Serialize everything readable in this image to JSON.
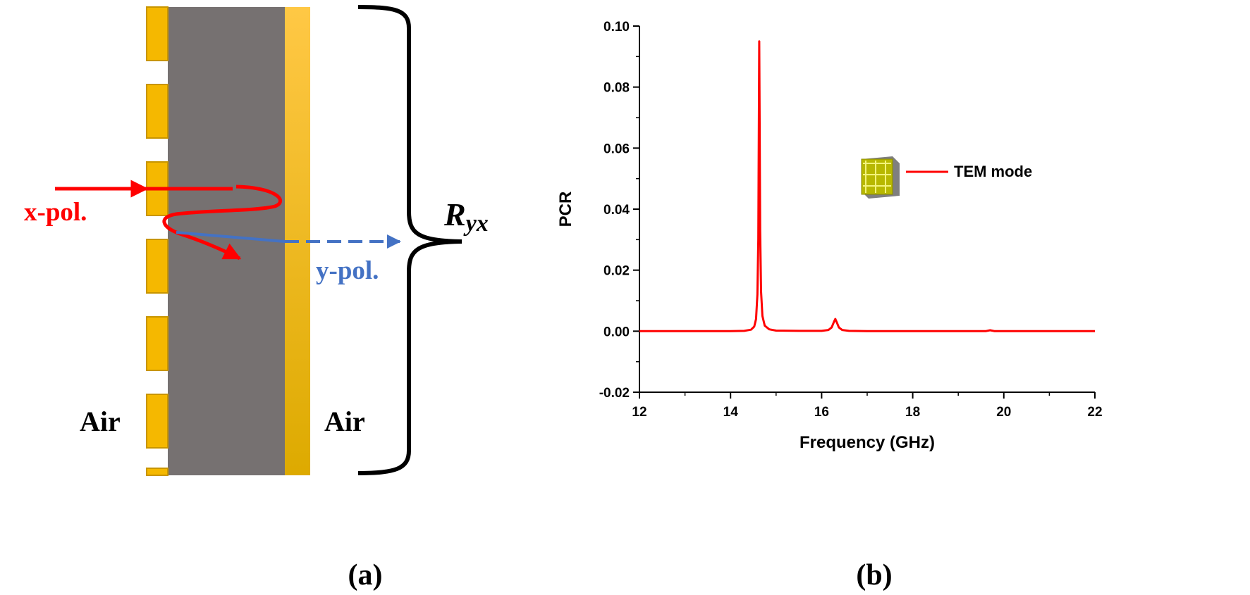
{
  "panel_a": {
    "caption": "(a)",
    "air_left": "Air",
    "air_right": "Air",
    "incident_label": "x-pol.",
    "reflected_label": "y-pol.",
    "brace_label_main": "R",
    "brace_label_sub": "yx",
    "colors": {
      "gold": "#F5B800",
      "gold_dark": "#C89500",
      "dielectric": "#767171",
      "incident": "#FF0000",
      "reflected": "#4472C4"
    }
  },
  "panel_b": {
    "caption": "(b)"
  },
  "chart_data": {
    "type": "line",
    "title": "",
    "xlabel": "Frequency (GHz)",
    "ylabel": "PCR",
    "xlim": [
      12,
      22
    ],
    "ylim": [
      -0.02,
      0.1
    ],
    "xticks": [
      "12",
      "14",
      "16",
      "18",
      "20",
      "22"
    ],
    "yticks": [
      "-0.02",
      "0.00",
      "0.02",
      "0.04",
      "0.06",
      "0.08",
      "0.10"
    ],
    "grid": false,
    "legend": {
      "position": "center-right",
      "icon": "metasurface-unit-cell-icon"
    },
    "series": [
      {
        "name": "TEM mode",
        "color": "#FF0000",
        "points": [
          [
            12.0,
            0.0
          ],
          [
            13.0,
            0.0
          ],
          [
            14.0,
            0.0
          ],
          [
            14.3,
            0.0001
          ],
          [
            14.45,
            0.0005
          ],
          [
            14.52,
            0.0015
          ],
          [
            14.56,
            0.004
          ],
          [
            14.59,
            0.012
          ],
          [
            14.61,
            0.03
          ],
          [
            14.62,
            0.065
          ],
          [
            14.63,
            0.095
          ],
          [
            14.64,
            0.068
          ],
          [
            14.65,
            0.033
          ],
          [
            14.67,
            0.013
          ],
          [
            14.7,
            0.005
          ],
          [
            14.75,
            0.0018
          ],
          [
            14.85,
            0.0006
          ],
          [
            15.0,
            0.0002
          ],
          [
            15.5,
            0.0001
          ],
          [
            16.0,
            0.0001
          ],
          [
            16.15,
            0.0004
          ],
          [
            16.22,
            0.0012
          ],
          [
            16.27,
            0.003
          ],
          [
            16.3,
            0.004
          ],
          [
            16.33,
            0.003
          ],
          [
            16.38,
            0.0012
          ],
          [
            16.45,
            0.0004
          ],
          [
            16.6,
            0.0001
          ],
          [
            17.0,
            0.0
          ],
          [
            19.6,
            0.0
          ],
          [
            19.7,
            0.0003
          ],
          [
            19.8,
            0.0
          ],
          [
            22.0,
            0.0
          ]
        ]
      }
    ]
  }
}
